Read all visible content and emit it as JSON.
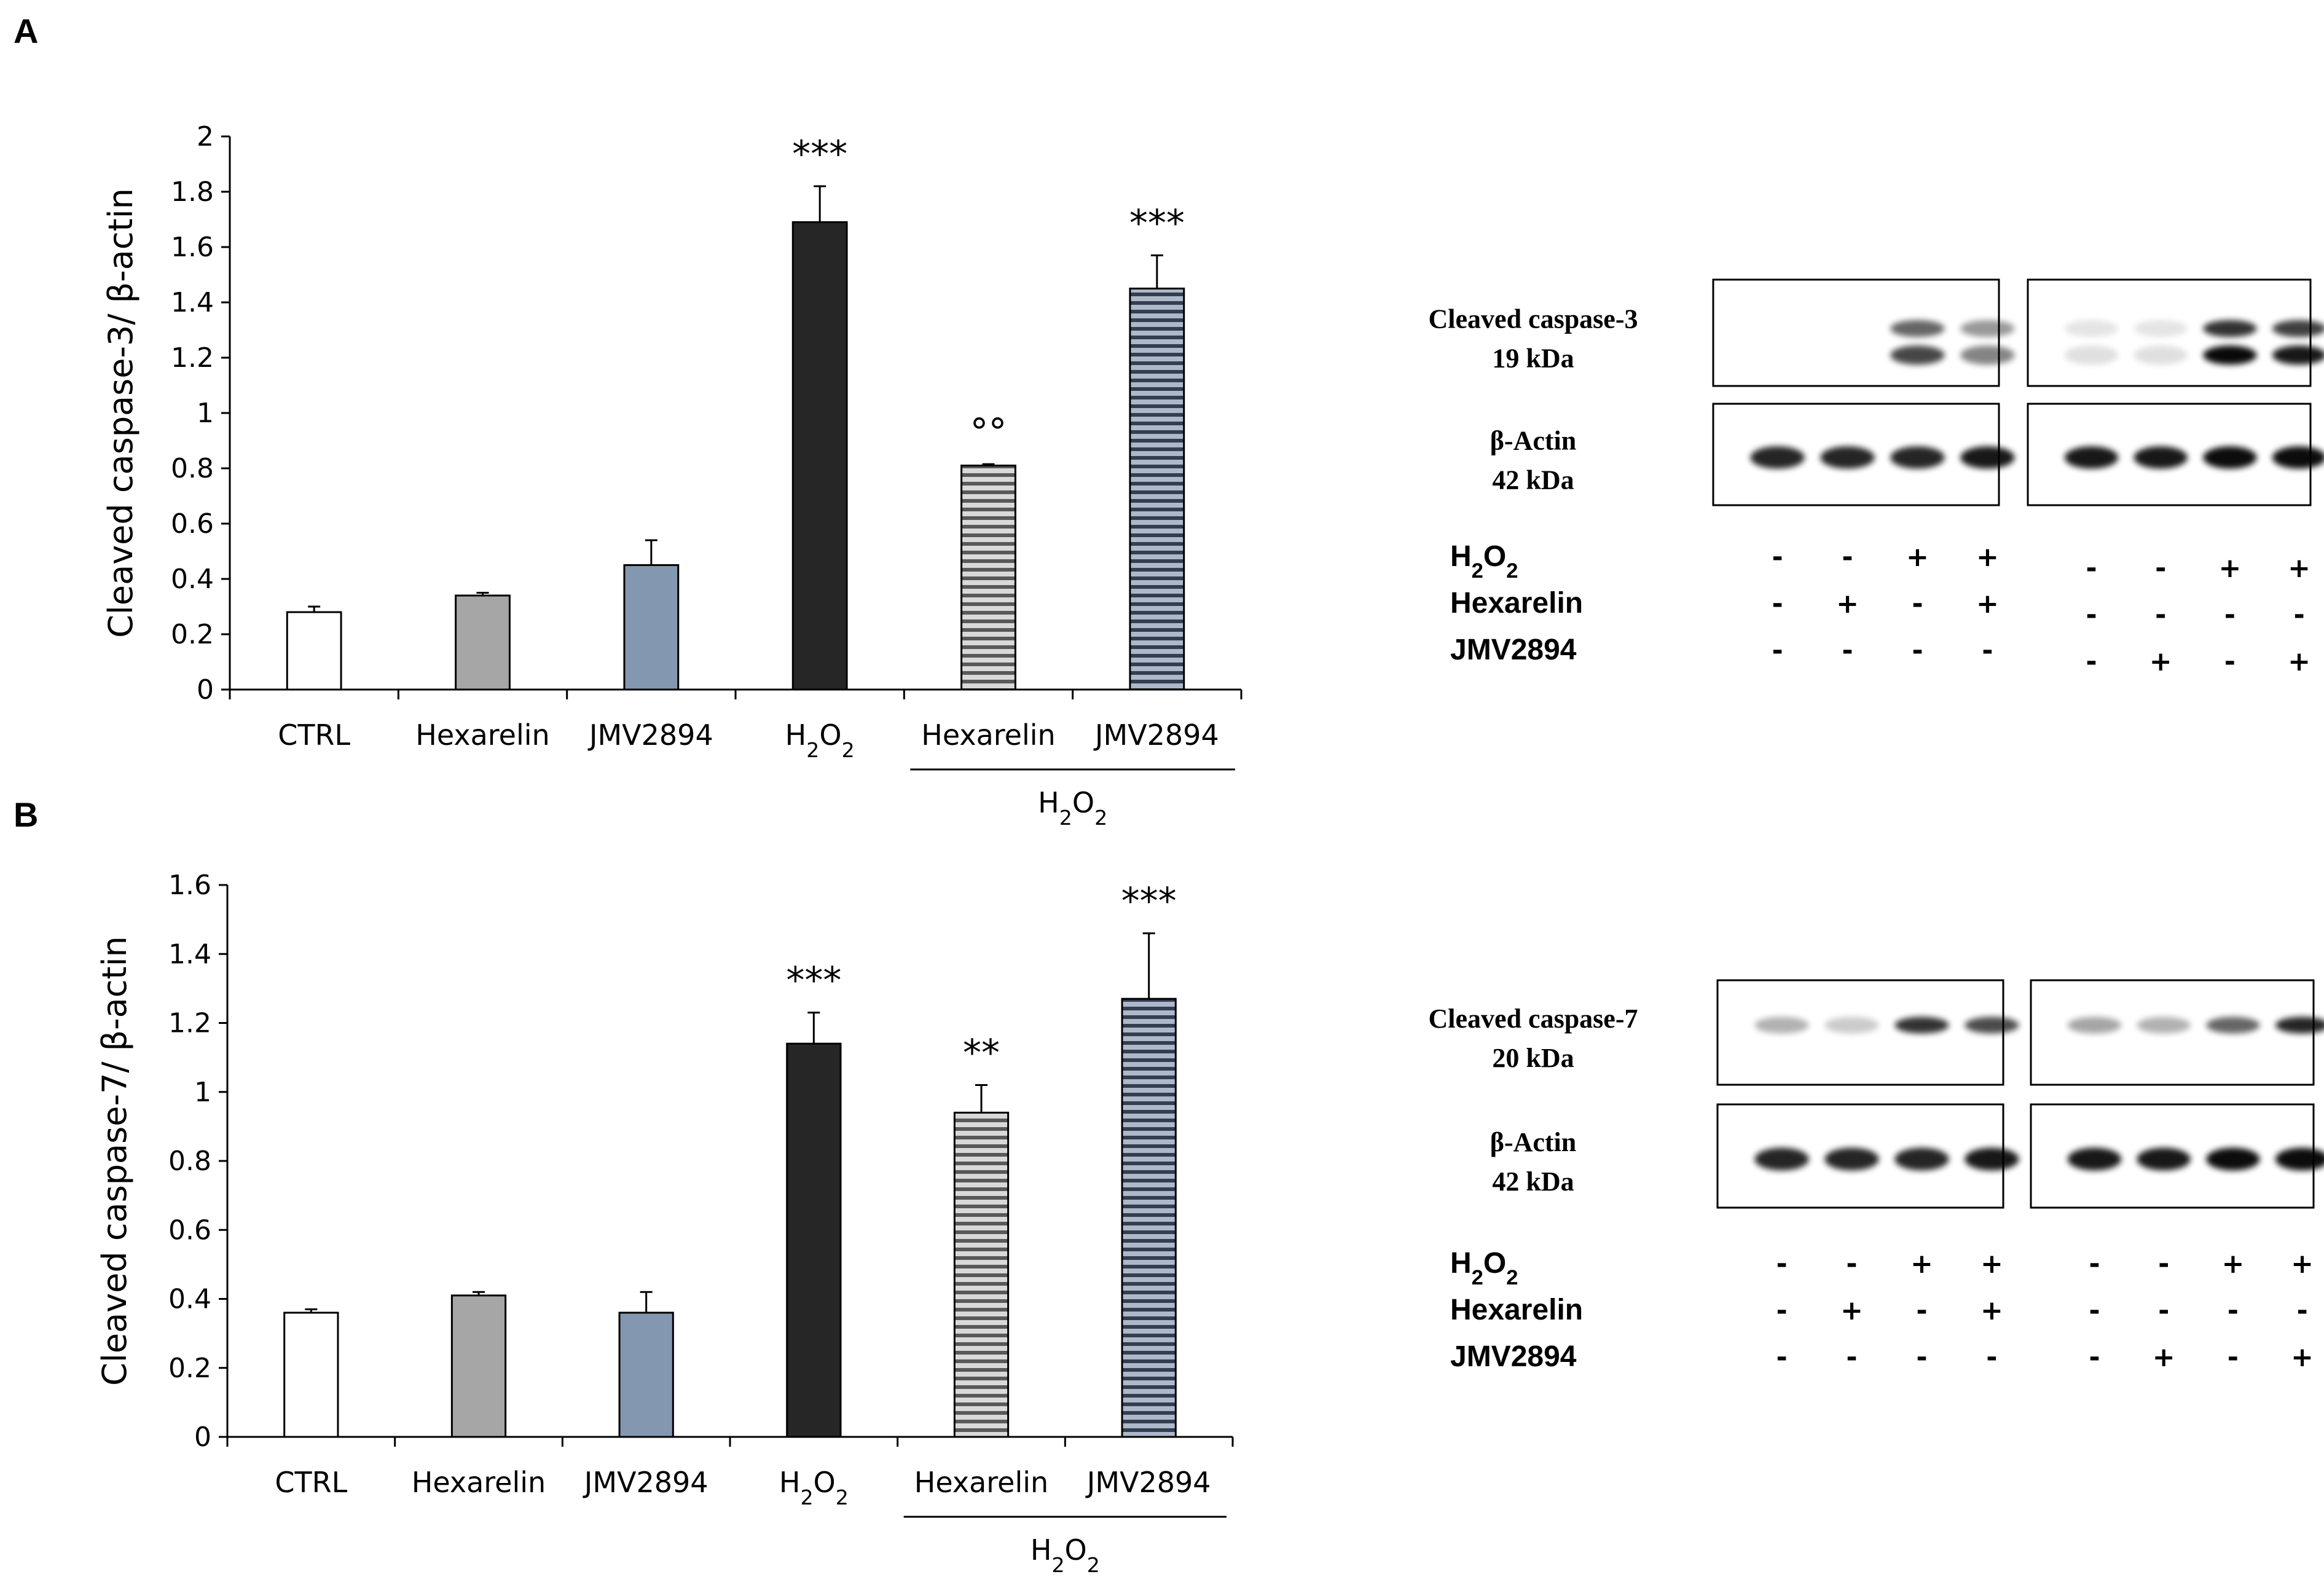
{
  "panels": [
    {
      "letter": "A",
      "chart_data": {
        "type": "bar",
        "ylabel": "Cleaved caspase-3/ β-actin",
        "ylim": [
          0,
          2
        ],
        "yticks": [
          0,
          0.2,
          0.4,
          0.6,
          0.8,
          1,
          1.2,
          1.4,
          1.6,
          1.8,
          2
        ],
        "ytick_labels": [
          "0",
          "0.2",
          "0.4",
          "0.6",
          "0.8",
          "1",
          "1.2",
          "1.4",
          "1.6",
          "1.8",
          "2"
        ],
        "categories": [
          "CTRL",
          "Hexarelin",
          "JMV2894",
          "H₂O₂",
          "Hexarelin",
          "JMV2894"
        ],
        "values": [
          0.28,
          0.34,
          0.45,
          1.69,
          0.81,
          1.45
        ],
        "errors": [
          0.02,
          0.01,
          0.09,
          0.13,
          0.005,
          0.12
        ],
        "annotations": [
          "",
          "",
          "",
          "***",
          "°°",
          "***"
        ],
        "group_label": "H₂O₂",
        "fills": [
          "white",
          "gray",
          "blue",
          "black",
          "gray-striped",
          "blue-striped"
        ]
      },
      "blot": {
        "labels": [
          {
            "line1": "Cleaved caspase-3",
            "line2": "19 kDa"
          },
          {
            "line1": "β-Actin",
            "line2": "42 kDa"
          }
        ],
        "rows": [
          {
            "name": "H₂O₂",
            "left": [
              "-",
              "-",
              "+",
              "+"
            ],
            "right": [
              "-",
              "-",
              "+",
              "+"
            ]
          },
          {
            "name": "Hexarelin",
            "left": [
              "-",
              "+",
              "-",
              "+"
            ],
            "right": [
              "-",
              "-",
              "-",
              "-"
            ]
          },
          {
            "name": "JMV2894",
            "left": [
              "-",
              "-",
              "-",
              "-"
            ],
            "right": [
              "-",
              "+",
              "-",
              "+"
            ]
          }
        ]
      }
    },
    {
      "letter": "B",
      "chart_data": {
        "type": "bar",
        "ylabel": "Cleaved caspase-7/ β-actin",
        "ylim": [
          0,
          1.6
        ],
        "yticks": [
          0,
          0.2,
          0.4,
          0.6,
          0.8,
          1,
          1.2,
          1.4,
          1.6
        ],
        "ytick_labels": [
          "0",
          "0.2",
          "0.4",
          "0.6",
          "0.8",
          "1",
          "1.2",
          "1.4",
          "1.6"
        ],
        "categories": [
          "CTRL",
          "Hexarelin",
          "JMV2894",
          "H₂O₂",
          "Hexarelin",
          "JMV2894"
        ],
        "values": [
          0.36,
          0.41,
          0.36,
          1.14,
          0.94,
          1.27
        ],
        "errors": [
          0.01,
          0.01,
          0.06,
          0.09,
          0.08,
          0.19
        ],
        "annotations": [
          "",
          "",
          "",
          "***",
          "**",
          "***"
        ],
        "group_label": "H₂O₂",
        "fills": [
          "white",
          "gray",
          "blue",
          "black",
          "gray-striped",
          "blue-striped"
        ]
      },
      "blot": {
        "labels": [
          {
            "line1": "Cleaved caspase-7",
            "line2": "20 kDa"
          },
          {
            "line1": "β-Actin",
            "line2": "42 kDa"
          }
        ],
        "rows": [
          {
            "name": "H₂O₂",
            "left": [
              "-",
              "-",
              "+",
              "+"
            ],
            "right": [
              "-",
              "-",
              "+",
              "+"
            ]
          },
          {
            "name": "Hexarelin",
            "left": [
              "-",
              "+",
              "-",
              "+"
            ],
            "right": [
              "-",
              "-",
              "-",
              "-"
            ]
          },
          {
            "name": "JMV2894",
            "left": [
              "-",
              "-",
              "-",
              "-"
            ],
            "right": [
              "-",
              "+",
              "-",
              "+"
            ]
          }
        ]
      }
    }
  ],
  "colors": {
    "white": "#ffffff",
    "gray": "#a6a6a6",
    "blue": "#8497b0",
    "black": "#262626",
    "stripe_gray_light": "#d9d9d9",
    "stripe_gray_dark": "#595959",
    "stripe_blue_light": "#adb9ca",
    "stripe_blue_dark": "#333f50"
  }
}
